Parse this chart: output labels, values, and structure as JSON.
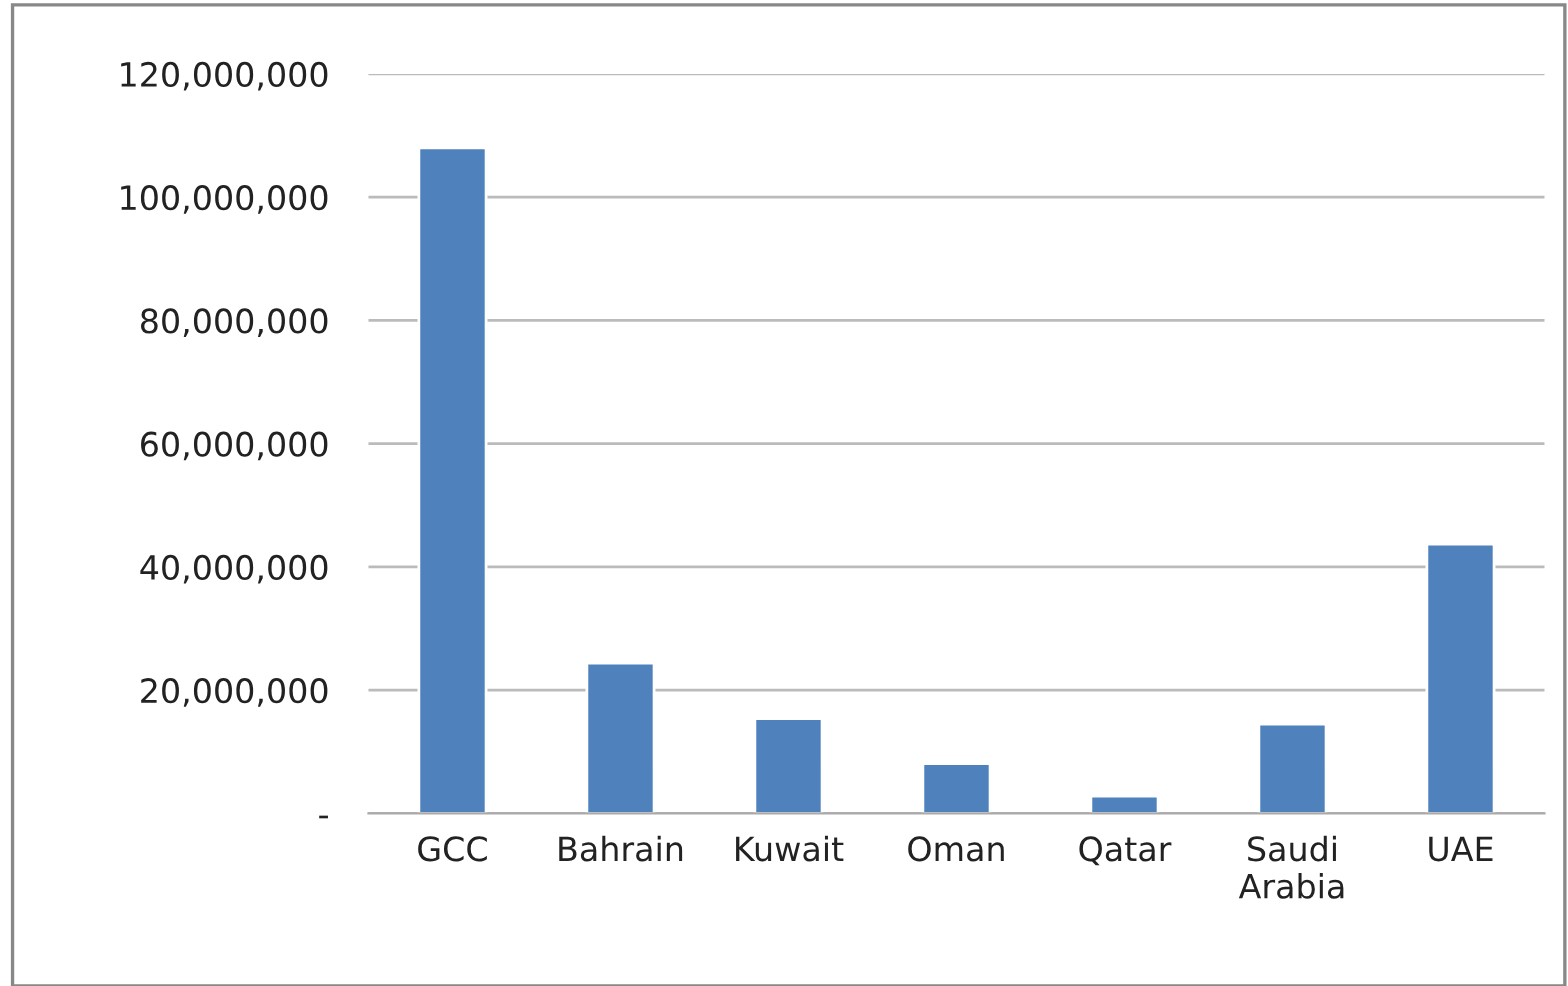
{
  "chart_data": {
    "type": "bar",
    "categories": [
      "GCC",
      "Bahrain",
      "Kuwait",
      "Oman",
      "Qatar",
      "Saudi\nArabia",
      "UAE"
    ],
    "values": [
      108000000,
      24400000,
      15400000,
      8100000,
      2800000,
      14500000,
      43700000
    ],
    "color": "#4f81bd",
    "ylim": [
      0,
      120000000
    ],
    "yticks": [
      {
        "value": 0,
        "label": "-"
      },
      {
        "value": 20000000,
        "label": "20,000,000"
      },
      {
        "value": 40000000,
        "label": "40,000,000"
      },
      {
        "value": 60000000,
        "label": "60,000,000"
      },
      {
        "value": 80000000,
        "label": "80,000,000"
      },
      {
        "value": 100000000,
        "label": "100,000,000"
      },
      {
        "value": 120000000,
        "label": "120,000,000"
      }
    ],
    "grid": "y"
  }
}
